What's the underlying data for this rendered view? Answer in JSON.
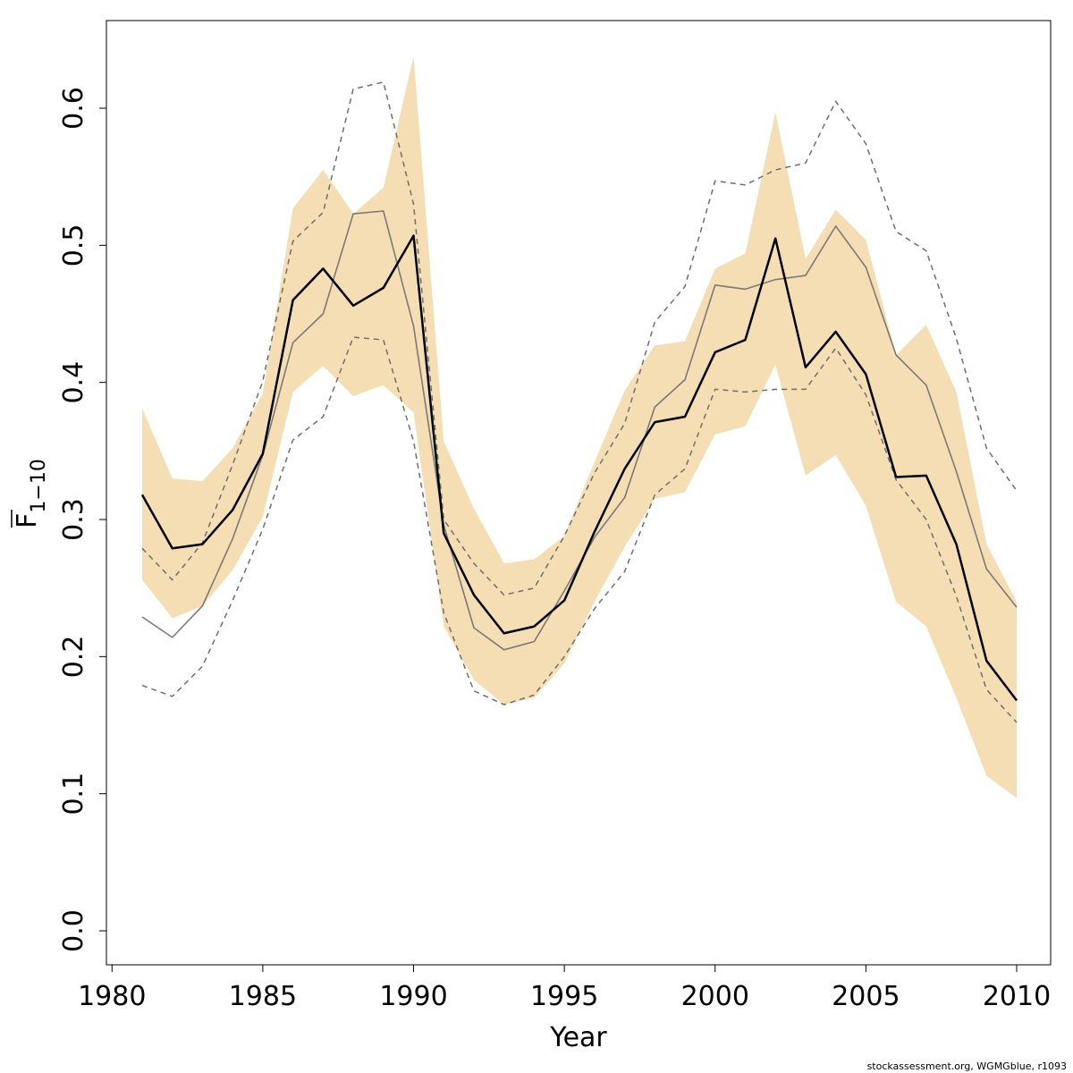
{
  "chart_data": {
    "type": "line",
    "xlabel": "Year",
    "ylabel": {
      "base": "F",
      "subscript": "1−10",
      "overline": true
    },
    "xlim": [
      1981,
      2010
    ],
    "ylim": [
      0,
      0.62
    ],
    "x_ticks": [
      1980,
      1985,
      1990,
      1995,
      2000,
      2005,
      2010
    ],
    "x_tick_labels": [
      "1980",
      "1985",
      "1990",
      "1995",
      "2000",
      "2005",
      "2010"
    ],
    "y_ticks": [
      0.0,
      0.1,
      0.2,
      0.3,
      0.4,
      0.5,
      0.6
    ],
    "y_tick_labels": [
      "0.0",
      "0.1",
      "0.2",
      "0.3",
      "0.4",
      "0.5",
      "0.6"
    ],
    "grid": false,
    "colors": {
      "band": "#f5deb3",
      "estimate": "#000000",
      "reference": "#7a7a7a",
      "reference_bounds": "#6e6e6e"
    },
    "x": [
      1981,
      1982,
      1983,
      1984,
      1985,
      1986,
      1987,
      1988,
      1989,
      1990,
      1991,
      1992,
      1993,
      1994,
      1995,
      1996,
      1997,
      1998,
      1999,
      2000,
      2001,
      2002,
      2003,
      2004,
      2005,
      2006,
      2007,
      2008,
      2009,
      2010
    ],
    "band": {
      "lower": [
        0.256,
        0.228,
        0.237,
        0.263,
        0.302,
        0.393,
        0.412,
        0.39,
        0.398,
        0.378,
        0.222,
        0.183,
        0.165,
        0.17,
        0.195,
        0.24,
        0.28,
        0.315,
        0.32,
        0.362,
        0.368,
        0.413,
        0.332,
        0.347,
        0.31,
        0.24,
        0.222,
        0.17,
        0.113,
        0.097
      ],
      "upper": [
        0.381,
        0.33,
        0.328,
        0.352,
        0.392,
        0.527,
        0.555,
        0.523,
        0.542,
        0.638,
        0.357,
        0.308,
        0.268,
        0.271,
        0.288,
        0.342,
        0.394,
        0.427,
        0.43,
        0.483,
        0.494,
        0.597,
        0.49,
        0.526,
        0.504,
        0.42,
        0.442,
        0.393,
        0.282,
        0.24
      ]
    },
    "series": [
      {
        "style": "solid-thick",
        "values": [
          0.318,
          0.279,
          0.282,
          0.307,
          0.348,
          0.46,
          0.483,
          0.456,
          0.469,
          0.507,
          0.29,
          0.245,
          0.217,
          0.222,
          0.241,
          0.291,
          0.337,
          0.371,
          0.375,
          0.422,
          0.431,
          0.505,
          0.411,
          0.437,
          0.406,
          0.331,
          0.332,
          0.282,
          0.197,
          0.168
        ]
      },
      {
        "style": "solid-thin",
        "values": [
          0.229,
          0.214,
          0.237,
          0.286,
          0.347,
          0.429,
          0.45,
          0.523,
          0.525,
          0.441,
          0.296,
          0.221,
          0.205,
          0.211,
          0.248,
          0.287,
          0.316,
          0.382,
          0.402,
          0.471,
          0.468,
          0.475,
          0.478,
          0.514,
          0.484,
          0.42,
          0.398,
          0.335,
          0.264,
          0.236
        ]
      },
      {
        "style": "dashed",
        "values": [
          0.279,
          0.256,
          0.283,
          0.34,
          0.401,
          0.503,
          0.524,
          0.614,
          0.619,
          0.53,
          0.3,
          0.268,
          0.245,
          0.25,
          0.288,
          0.334,
          0.37,
          0.444,
          0.47,
          0.547,
          0.544,
          0.555,
          0.56,
          0.605,
          0.574,
          0.51,
          0.496,
          0.432,
          0.352,
          0.321
        ]
      },
      {
        "style": "dashed",
        "values": [
          0.179,
          0.171,
          0.193,
          0.241,
          0.293,
          0.358,
          0.375,
          0.433,
          0.431,
          0.357,
          0.232,
          0.175,
          0.165,
          0.172,
          0.2,
          0.235,
          0.262,
          0.318,
          0.337,
          0.395,
          0.393,
          0.395,
          0.395,
          0.425,
          0.391,
          0.329,
          0.3,
          0.244,
          0.176,
          0.152
        ]
      }
    ]
  },
  "footer": {
    "credit": "stockassessment.org, WGMGblue, r1093"
  }
}
